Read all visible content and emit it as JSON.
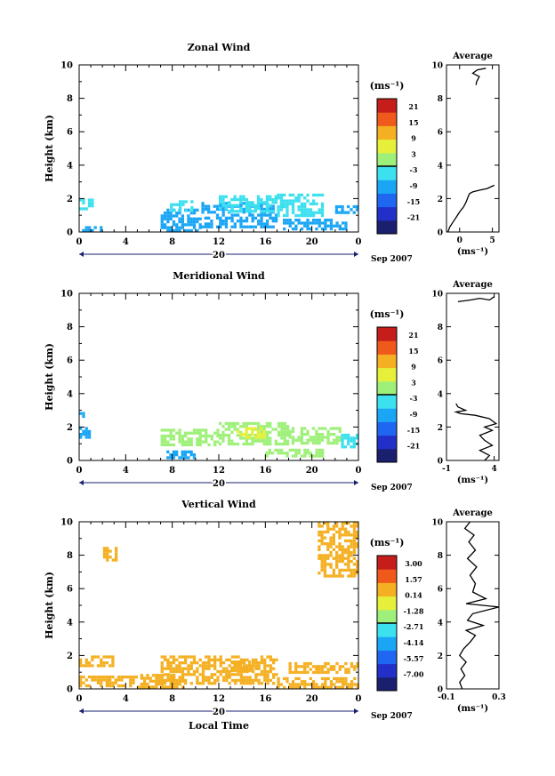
{
  "units_label": "(ms⁻¹)",
  "date_label": "Sep 2007",
  "day_label": "20",
  "x_label": "Local Time",
  "x_ticks": [
    "0",
    "4",
    "8",
    "12",
    "16",
    "20",
    "0"
  ],
  "chart_data": [
    {
      "type": "heatmap",
      "title": "Zonal Wind",
      "ylabel": "Height (km)",
      "xlabel": "",
      "xlim": [
        0,
        24
      ],
      "ylim": [
        0,
        10
      ],
      "y_ticks": [
        "0",
        "2",
        "4",
        "6",
        "8",
        "10"
      ],
      "colorbar": {
        "label": "(ms⁻¹)",
        "ticks": [
          "21",
          "15",
          "9",
          "3",
          "-3",
          "-9",
          "-15",
          "-21"
        ],
        "range": [
          -24,
          24
        ]
      },
      "cells": [
        {
          "t0": 0,
          "t1": 1.1,
          "z0": 1.4,
          "z1": 2.0,
          "v": -3
        },
        {
          "t0": 0,
          "t1": 2.0,
          "z0": 0.1,
          "z1": 0.35,
          "v": -5
        },
        {
          "t0": 7.0,
          "t1": 10.5,
          "z0": 0.1,
          "z1": 1.4,
          "v": -9
        },
        {
          "t0": 7.8,
          "t1": 10.0,
          "z0": 1.2,
          "z1": 1.9,
          "v": -4
        },
        {
          "t0": 10.5,
          "t1": 17.0,
          "z0": 0.3,
          "z1": 1.8,
          "v": -6
        },
        {
          "t0": 12.0,
          "t1": 17.0,
          "z0": 1.3,
          "z1": 2.2,
          "v": -3
        },
        {
          "t0": 17.0,
          "t1": 21.0,
          "z0": 1.0,
          "z1": 2.3,
          "v": -2
        },
        {
          "t0": 17.5,
          "t1": 23.0,
          "z0": 0.1,
          "z1": 0.8,
          "v": -9
        },
        {
          "t0": 22.0,
          "t1": 23.8,
          "z0": 1.1,
          "z1": 1.6,
          "v": -8
        }
      ],
      "profile": {
        "title": "Average",
        "xlim": [
          -2,
          6
        ],
        "x_ticks": [
          "0",
          "5"
        ],
        "xlabel": "(ms⁻¹)",
        "ylim": [
          0,
          10
        ],
        "y_ticks": [
          "0",
          "2",
          "4",
          "6",
          "8",
          "10"
        ],
        "points": [
          [
            -1.8,
            0.0
          ],
          [
            -1.5,
            0.3
          ],
          [
            -1.0,
            0.6
          ],
          [
            -0.5,
            0.9
          ],
          [
            0.0,
            1.2
          ],
          [
            0.6,
            1.5
          ],
          [
            1.0,
            1.8
          ],
          [
            1.3,
            2.1
          ],
          [
            1.5,
            2.3
          ],
          [
            2.0,
            2.4
          ],
          [
            3.0,
            2.5
          ],
          [
            4.2,
            2.6
          ],
          [
            5.3,
            2.8
          ]
        ],
        "points_upper": [
          [
            2.5,
            8.8
          ],
          [
            2.6,
            9.0
          ],
          [
            3.0,
            9.3
          ],
          [
            2.0,
            9.5
          ],
          [
            2.7,
            9.7
          ],
          [
            4.0,
            9.8
          ]
        ]
      }
    },
    {
      "type": "heatmap",
      "title": "Meridional Wind",
      "ylabel": "Height (km)",
      "xlabel": "",
      "xlim": [
        0,
        24
      ],
      "ylim": [
        0,
        10
      ],
      "y_ticks": [
        "0",
        "2",
        "4",
        "6",
        "8",
        "10"
      ],
      "colorbar": {
        "label": "(ms⁻¹)",
        "ticks": [
          "21",
          "15",
          "9",
          "3",
          "-3",
          "-9",
          "-15",
          "-21"
        ],
        "range": [
          -24,
          24
        ]
      },
      "cells": [
        {
          "t0": 0,
          "t1": 1.0,
          "z0": 1.3,
          "z1": 2.0,
          "v": -8
        },
        {
          "t0": 0,
          "t1": 0.3,
          "z0": 2.6,
          "z1": 2.9,
          "v": -6
        },
        {
          "t0": 7.0,
          "t1": 12.0,
          "z0": 0.9,
          "z1": 1.9,
          "v": 1
        },
        {
          "t0": 7.5,
          "t1": 10.0,
          "z0": 0.1,
          "z1": 0.6,
          "v": -6
        },
        {
          "t0": 12.0,
          "t1": 18.0,
          "z0": 1.0,
          "z1": 2.3,
          "v": 4
        },
        {
          "t0": 13.5,
          "t1": 16.0,
          "z0": 1.3,
          "z1": 2.0,
          "v": 7
        },
        {
          "t0": 18.0,
          "t1": 22.5,
          "z0": 1.0,
          "z1": 2.0,
          "v": 1
        },
        {
          "t0": 16.0,
          "t1": 21.0,
          "z0": 0.2,
          "z1": 0.7,
          "v": 0
        },
        {
          "t0": 22.5,
          "t1": 24.0,
          "z0": 0.8,
          "z1": 1.6,
          "v": -4
        }
      ],
      "profile": {
        "title": "Average",
        "xlim": [
          -1,
          4.5
        ],
        "x_ticks": [
          "-1",
          "4"
        ],
        "xlabel": "(ms⁻¹)",
        "ylim": [
          0,
          10
        ],
        "y_ticks": [
          "0",
          "2",
          "4",
          "6",
          "8",
          "10"
        ],
        "points": [
          [
            3.0,
            0.0
          ],
          [
            3.5,
            0.3
          ],
          [
            2.5,
            0.6
          ],
          [
            3.8,
            0.9
          ],
          [
            3.0,
            1.2
          ],
          [
            2.5,
            1.5
          ],
          [
            3.8,
            1.8
          ],
          [
            3.0,
            2.0
          ],
          [
            4.2,
            2.2
          ],
          [
            3.5,
            2.5
          ],
          [
            2.0,
            2.7
          ],
          [
            0.5,
            2.8
          ],
          [
            0.0,
            2.9
          ],
          [
            1.0,
            3.0
          ],
          [
            0.2,
            3.2
          ],
          [
            0.0,
            3.4
          ]
        ],
        "points_upper": [
          [
            0.2,
            9.5
          ],
          [
            1.5,
            9.6
          ],
          [
            2.5,
            9.7
          ],
          [
            3.5,
            9.6
          ],
          [
            4.0,
            9.8
          ]
        ]
      }
    },
    {
      "type": "heatmap",
      "title": "Vertical Wind",
      "ylabel": "Height (km)",
      "xlabel": "Local Time",
      "xlim": [
        0,
        24
      ],
      "ylim": [
        0,
        10
      ],
      "y_ticks": [
        "0",
        "2",
        "4",
        "6",
        "8",
        "10"
      ],
      "colorbar": {
        "label": "(ms⁻¹)",
        "ticks": [
          "3.00",
          "1.57",
          "0.14",
          "-1.28",
          "-2.71",
          "-4.14",
          "-5.57",
          "-7.00"
        ],
        "range": [
          -7.7,
          3.7
        ]
      },
      "cells": [
        {
          "t0": 0,
          "t1": 5.0,
          "z0": 0.2,
          "z1": 0.8,
          "v": 0.4
        },
        {
          "t0": 0,
          "t1": 2.8,
          "z0": 1.3,
          "z1": 2.0,
          "v": 0.3
        },
        {
          "t0": 1.8,
          "t1": 3.2,
          "z0": 7.7,
          "z1": 8.5,
          "v": 0.9
        },
        {
          "t0": 5.0,
          "t1": 9.0,
          "z0": 0.1,
          "z1": 0.9,
          "v": 0.4
        },
        {
          "t0": 7.0,
          "t1": 17.0,
          "z0": 0.3,
          "z1": 2.0,
          "v": 0.6
        },
        {
          "t0": 13.0,
          "t1": 15.0,
          "z0": 1.0,
          "z1": 1.7,
          "v": 1.2
        },
        {
          "t0": 17.0,
          "t1": 24.0,
          "z0": 0.1,
          "z1": 0.7,
          "v": 0.4
        },
        {
          "t0": 18.0,
          "t1": 24.0,
          "z0": 1.0,
          "z1": 1.6,
          "v": 0.3
        },
        {
          "t0": 20.5,
          "t1": 23.8,
          "z0": 6.7,
          "z1": 10.0,
          "v": 0.5
        }
      ],
      "profile": {
        "title": "Average",
        "xlim": [
          -0.1,
          0.3
        ],
        "x_ticks": [
          "-0.1",
          "0.3"
        ],
        "xlabel": "(ms⁻¹)",
        "ylim": [
          0,
          10
        ],
        "y_ticks": [
          "0",
          "2",
          "4",
          "6",
          "8",
          "10"
        ],
        "points": [
          [
            0.02,
            0.0
          ],
          [
            0.0,
            0.4
          ],
          [
            0.04,
            0.8
          ],
          [
            0.01,
            1.2
          ],
          [
            0.05,
            1.6
          ],
          [
            0.0,
            2.0
          ],
          [
            0.03,
            2.4
          ],
          [
            0.08,
            2.8
          ],
          [
            0.12,
            3.2
          ],
          [
            0.05,
            3.5
          ],
          [
            0.18,
            3.8
          ],
          [
            0.06,
            4.1
          ],
          [
            0.1,
            4.5
          ],
          [
            0.3,
            4.9
          ],
          [
            0.05,
            5.1
          ],
          [
            0.2,
            5.4
          ],
          [
            0.1,
            5.8
          ],
          [
            0.12,
            6.3
          ],
          [
            0.08,
            6.8
          ],
          [
            0.13,
            7.3
          ],
          [
            0.06,
            7.8
          ],
          [
            0.12,
            8.3
          ],
          [
            0.07,
            8.8
          ],
          [
            0.11,
            9.2
          ],
          [
            0.04,
            9.6
          ],
          [
            0.08,
            10.0
          ]
        ]
      }
    }
  ]
}
